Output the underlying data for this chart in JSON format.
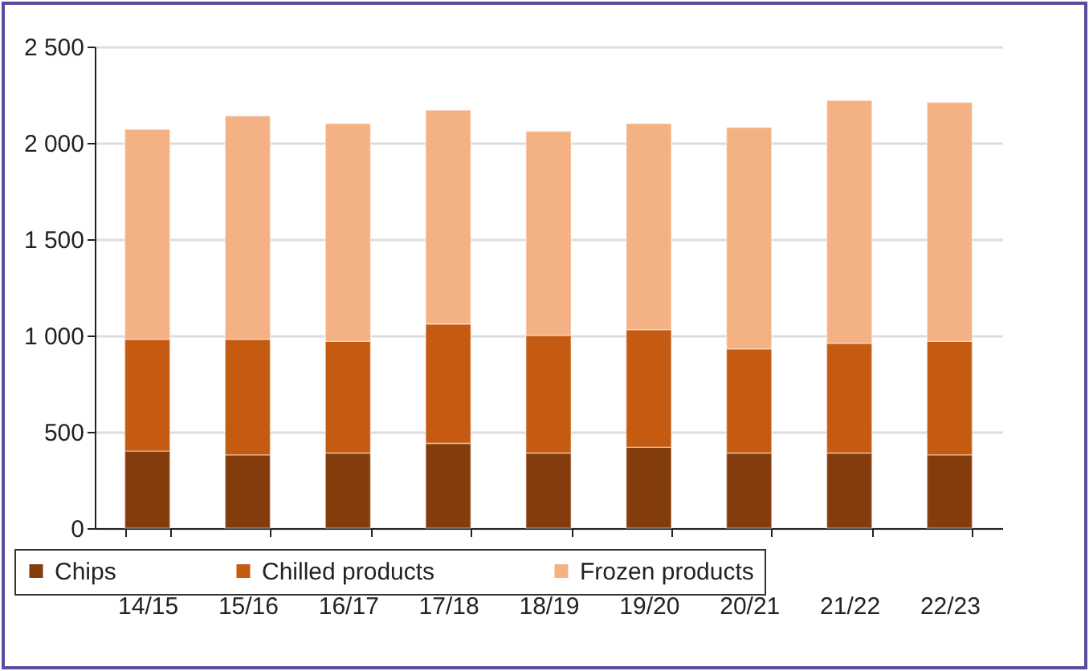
{
  "chart_data": {
    "type": "bar",
    "stacked": true,
    "categories": [
      "14/15",
      "15/16",
      "16/17",
      "17/18",
      "18/19",
      "19/20",
      "20/21",
      "21/22",
      "22/23"
    ],
    "series": [
      {
        "name": "Chips",
        "color": "#843c0c",
        "values": [
          400,
          380,
          390,
          440,
          390,
          420,
          390,
          390,
          380
        ]
      },
      {
        "name": "Chilled products",
        "color": "#c55a11",
        "values": [
          580,
          600,
          580,
          620,
          610,
          610,
          540,
          570,
          590
        ]
      },
      {
        "name": "Frozen products",
        "color": "#f4b183",
        "values": [
          1090,
          1160,
          1130,
          1110,
          1060,
          1070,
          1150,
          1260,
          1240
        ]
      }
    ],
    "ylim": [
      0,
      2500
    ],
    "yticks": [
      0,
      500,
      {
        "value": 1000,
        "label": "1 000"
      },
      {
        "value": 1500,
        "label": "1 500"
      },
      {
        "value": 2000,
        "label": "2 000"
      },
      {
        "value": 2500,
        "label": "2 500"
      }
    ],
    "grid": "y",
    "legend": "bottom"
  }
}
